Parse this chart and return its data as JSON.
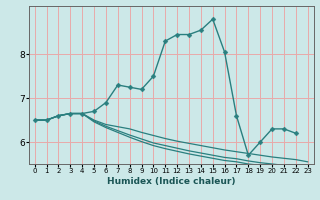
{
  "xlabel": "Humidex (Indice chaleur)",
  "ylabel": "",
  "bg_color": "#cce8e8",
  "grid_color": "#e8aaaa",
  "line_color": "#2a7f7f",
  "xlim": [
    -0.5,
    23.5
  ],
  "ylim": [
    5.5,
    9.1
  ],
  "yticks": [
    6,
    7,
    8
  ],
  "xticks": [
    0,
    1,
    2,
    3,
    4,
    5,
    6,
    7,
    8,
    9,
    10,
    11,
    12,
    13,
    14,
    15,
    16,
    17,
    18,
    19,
    20,
    21,
    22,
    23
  ],
  "lines": [
    {
      "x": [
        0,
        1,
        2,
        3,
        4,
        5,
        6,
        7,
        8,
        9,
        10,
        11,
        12,
        13,
        14,
        15,
        16,
        17,
        18,
        19,
        20,
        21,
        22
      ],
      "y": [
        6.5,
        6.5,
        6.6,
        6.65,
        6.65,
        6.7,
        6.9,
        7.3,
        7.25,
        7.2,
        7.5,
        8.3,
        8.45,
        8.45,
        8.55,
        8.8,
        8.05,
        6.6,
        5.7,
        6.0,
        6.3,
        6.3,
        6.2
      ],
      "marker": "D",
      "markersize": 2.5,
      "lw": 1.0
    },
    {
      "x": [
        0,
        1,
        2,
        3,
        4,
        5,
        6,
        7,
        8,
        9,
        10,
        11,
        12,
        13,
        14,
        15,
        16,
        17,
        18,
        19,
        20,
        21,
        22,
        23
      ],
      "y": [
        6.5,
        6.5,
        6.6,
        6.65,
        6.65,
        6.5,
        6.4,
        6.35,
        6.3,
        6.22,
        6.15,
        6.08,
        6.02,
        5.97,
        5.92,
        5.87,
        5.82,
        5.78,
        5.74,
        5.7,
        5.66,
        5.63,
        5.6,
        5.55
      ],
      "marker": null,
      "markersize": 0,
      "lw": 0.9
    },
    {
      "x": [
        0,
        1,
        2,
        3,
        4,
        5,
        6,
        7,
        8,
        9,
        10,
        11,
        12,
        13,
        14,
        15,
        16,
        17,
        18,
        19,
        20,
        21,
        22,
        23
      ],
      "y": [
        6.5,
        6.5,
        6.6,
        6.65,
        6.65,
        6.48,
        6.36,
        6.26,
        6.16,
        6.07,
        5.98,
        5.92,
        5.86,
        5.8,
        5.75,
        5.7,
        5.65,
        5.62,
        5.57,
        5.53,
        5.5,
        5.47,
        5.44,
        5.4
      ],
      "marker": null,
      "markersize": 0,
      "lw": 0.9
    },
    {
      "x": [
        0,
        1,
        2,
        3,
        4,
        5,
        6,
        7,
        8,
        9,
        10,
        11,
        12,
        13,
        14,
        15,
        16,
        17,
        18,
        19,
        20,
        21,
        22,
        23
      ],
      "y": [
        6.5,
        6.5,
        6.6,
        6.65,
        6.65,
        6.46,
        6.33,
        6.22,
        6.11,
        6.01,
        5.92,
        5.85,
        5.79,
        5.73,
        5.68,
        5.63,
        5.58,
        5.55,
        5.5,
        5.47,
        5.43,
        5.4,
        5.38,
        5.34
      ],
      "marker": null,
      "markersize": 0,
      "lw": 0.9
    }
  ]
}
